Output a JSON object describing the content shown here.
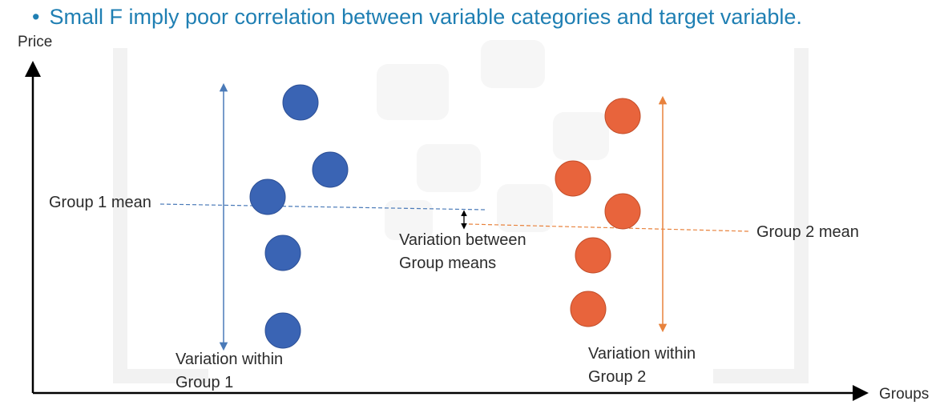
{
  "slide": {
    "bullet_symbol": "•",
    "bullet_text": "Small F  imply poor correlation between variable categories and target variable."
  },
  "axes": {
    "y_label": "Price",
    "x_label": "Groups"
  },
  "group1": {
    "mean_label": "Group 1 mean",
    "variation_label_line1": "Variation within",
    "variation_label_line2": "Group 1",
    "color": "#3a64b4"
  },
  "group2": {
    "mean_label": "Group 2 mean",
    "variation_label_line1": "Variation within",
    "variation_label_line2": "Group 2",
    "color": "#e8643c"
  },
  "between": {
    "label_line1": "Variation between",
    "label_line2": "Group means"
  },
  "colors": {
    "text_accent": "#1f7fb3",
    "axis": "#000000",
    "group1_line": "#4a7ab8",
    "group2_line": "#e8823c"
  }
}
